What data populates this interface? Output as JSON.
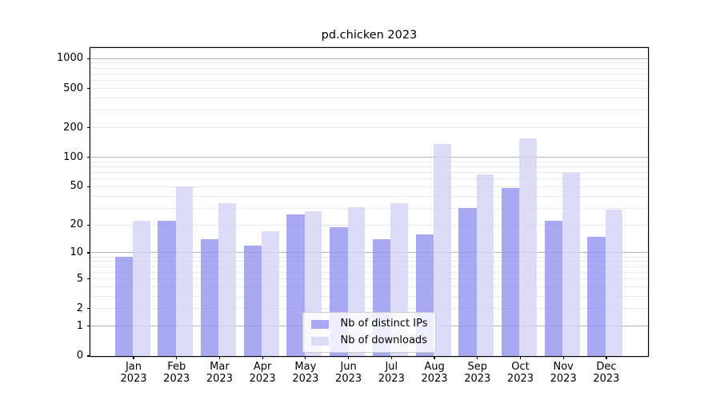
{
  "chart_data": {
    "type": "bar",
    "title": "pd.chicken 2023",
    "categories": [
      {
        "month": "Jan",
        "year": "2023"
      },
      {
        "month": "Feb",
        "year": "2023"
      },
      {
        "month": "Mar",
        "year": "2023"
      },
      {
        "month": "Apr",
        "year": "2023"
      },
      {
        "month": "May",
        "year": "2023"
      },
      {
        "month": "Jun",
        "year": "2023"
      },
      {
        "month": "Jul",
        "year": "2023"
      },
      {
        "month": "Aug",
        "year": "2023"
      },
      {
        "month": "Sep",
        "year": "2023"
      },
      {
        "month": "Oct",
        "year": "2023"
      },
      {
        "month": "Nov",
        "year": "2023"
      },
      {
        "month": "Dec",
        "year": "2023"
      }
    ],
    "series": [
      {
        "key": "distinct-ips",
        "name": "Nb of distinct IPs",
        "color": "#9696f0",
        "values": [
          9,
          22,
          14,
          12,
          26,
          19,
          14,
          16,
          30,
          49,
          22,
          15
        ]
      },
      {
        "key": "downloads",
        "name": "Nb of downloads",
        "color": "#d4d4f7",
        "values": [
          22,
          50,
          34,
          17,
          28,
          31,
          34,
          137,
          67,
          155,
          70,
          29
        ]
      }
    ],
    "yscale": "log1p",
    "yticks": [
      0,
      1,
      2,
      5,
      10,
      20,
      50,
      100,
      200,
      500,
      1000
    ],
    "ylim": [
      0,
      1300
    ],
    "xlabel": "",
    "ylabel": "",
    "grid": true,
    "grid_major_color": "#b4b4b4",
    "grid_minor_color": "#e8e8e8",
    "legend_position": "lower center"
  }
}
